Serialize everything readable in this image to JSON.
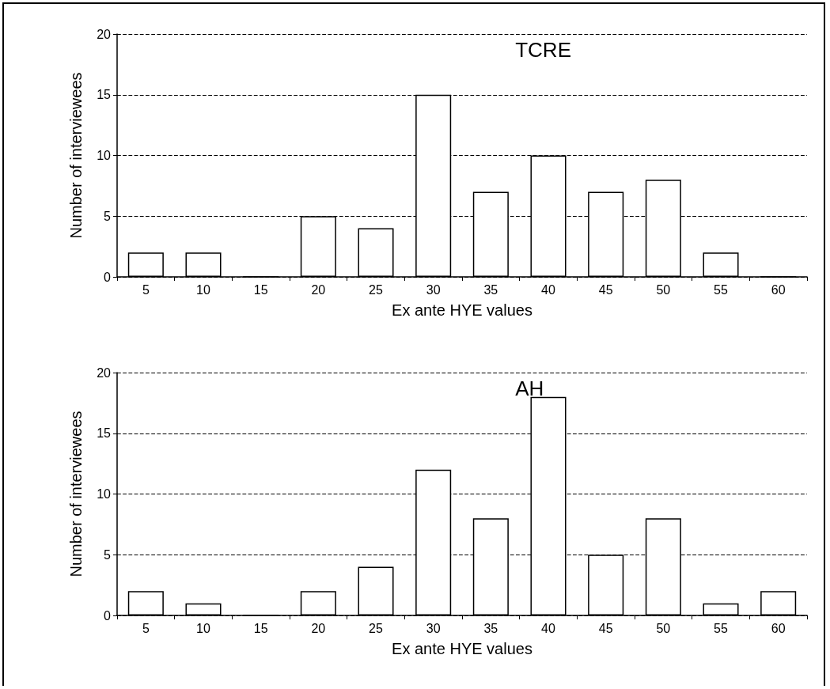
{
  "chart_data": [
    {
      "type": "bar",
      "title": "TCRE",
      "xlabel": "Ex ante HYE values",
      "ylabel": "Number of interviewees",
      "categories": [
        "5",
        "10",
        "15",
        "20",
        "25",
        "30",
        "35",
        "40",
        "45",
        "50",
        "55",
        "60"
      ],
      "values": [
        2,
        2,
        0,
        5,
        4,
        15,
        7,
        10,
        7,
        8,
        2,
        0
      ],
      "color": "#ffffff",
      "ylim": [
        0,
        20
      ],
      "yticks": [
        0,
        5,
        10,
        15,
        20
      ],
      "grid": "y"
    },
    {
      "type": "bar",
      "title": "AH",
      "xlabel": "Ex ante HYE values",
      "ylabel": "Number of interviewees",
      "categories": [
        "5",
        "10",
        "15",
        "20",
        "25",
        "30",
        "35",
        "40",
        "45",
        "50",
        "55",
        "60"
      ],
      "values": [
        2,
        1,
        0,
        2,
        4,
        12,
        8,
        18,
        5,
        8,
        1,
        2
      ],
      "color": "#ffffff",
      "ylim": [
        0,
        20
      ],
      "yticks": [
        0,
        5,
        10,
        15,
        20
      ],
      "grid": "y"
    }
  ]
}
